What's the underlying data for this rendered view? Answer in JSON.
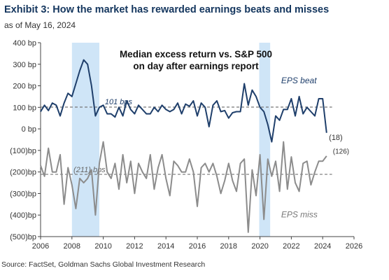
{
  "header": {
    "title": "Exhibit 3: How the market has rewarded earnings beats and misses",
    "subtitle": "as of May 16, 2024"
  },
  "footer": {
    "source": "Source: FactSet, Goldman Sachs Global Investment Research"
  },
  "colors": {
    "beat": "#1f3f6b",
    "miss": "#8c8c8c",
    "shade": "#cfe5f7",
    "dashed": "#777777"
  },
  "chart_data": {
    "type": "line",
    "title": "Median excess return vs. S&P 500\non day after earnings report",
    "ylim": [
      -500,
      400
    ],
    "xlim": [
      2006,
      2026
    ],
    "y_ticks": [
      400,
      300,
      200,
      100,
      0,
      -100,
      -200,
      -300,
      -400,
      -500
    ],
    "y_tick_labels": [
      "400 bp",
      "300 bp",
      "200 bp",
      "100 bp",
      "0 bp",
      "(100)bp",
      "(200)bp",
      "(300)bp",
      "(400)bp",
      "(500)bp"
    ],
    "x_ticks": [
      2006,
      2008,
      2010,
      2012,
      2014,
      2016,
      2018,
      2020,
      2022,
      2024,
      2026
    ],
    "x_tick_labels": [
      "2006",
      "2008",
      "2010",
      "2012",
      "2014",
      "2016",
      "2018",
      "2020",
      "2022",
      "2024",
      "2026"
    ],
    "shaded_periods": [
      [
        2008.0,
        2009.75
      ],
      [
        2019.95,
        2020.65
      ]
    ],
    "grid": false,
    "series": [
      {
        "name": "EPS beat",
        "x": [
          2006.0,
          2006.25,
          2006.5,
          2006.75,
          2007.0,
          2007.25,
          2007.5,
          2007.75,
          2008.0,
          2008.25,
          2008.5,
          2008.75,
          2009.0,
          2009.25,
          2009.5,
          2009.75,
          2010.0,
          2010.25,
          2010.5,
          2010.75,
          2011.0,
          2011.25,
          2011.5,
          2011.75,
          2012.0,
          2012.25,
          2012.5,
          2012.75,
          2013.0,
          2013.25,
          2013.5,
          2013.75,
          2014.0,
          2014.25,
          2014.5,
          2014.75,
          2015.0,
          2015.25,
          2015.5,
          2015.75,
          2016.0,
          2016.25,
          2016.5,
          2016.75,
          2017.0,
          2017.25,
          2017.5,
          2017.75,
          2018.0,
          2018.25,
          2018.5,
          2018.75,
          2019.0,
          2019.25,
          2019.5,
          2019.75,
          2020.0,
          2020.25,
          2020.5,
          2020.75,
          2021.0,
          2021.25,
          2021.5,
          2021.75,
          2022.0,
          2022.25,
          2022.5,
          2022.75,
          2023.0,
          2023.25,
          2023.5,
          2023.75,
          2024.0,
          2024.25
        ],
        "values": [
          80,
          110,
          85,
          120,
          110,
          60,
          120,
          165,
          150,
          210,
          270,
          320,
          300,
          200,
          60,
          100,
          110,
          70,
          70,
          55,
          100,
          60,
          130,
          90,
          70,
          110,
          90,
          70,
          70,
          100,
          80,
          110,
          90,
          80,
          90,
          120,
          70,
          115,
          105,
          130,
          60,
          120,
          100,
          10,
          110,
          130,
          80,
          85,
          50,
          75,
          80,
          80,
          210,
          110,
          180,
          150,
          100,
          80,
          20,
          -60,
          60,
          40,
          90,
          90,
          140,
          60,
          150,
          70,
          100,
          80,
          60,
          140,
          140,
          -18
        ]
      },
      {
        "name": "EPS miss",
        "x": [
          2006.0,
          2006.25,
          2006.5,
          2006.75,
          2007.0,
          2007.25,
          2007.5,
          2007.75,
          2008.0,
          2008.25,
          2008.5,
          2008.75,
          2009.0,
          2009.25,
          2009.5,
          2009.75,
          2010.0,
          2010.25,
          2010.5,
          2010.75,
          2011.0,
          2011.25,
          2011.5,
          2011.75,
          2012.0,
          2012.25,
          2012.5,
          2012.75,
          2013.0,
          2013.25,
          2013.5,
          2013.75,
          2014.0,
          2014.25,
          2014.5,
          2014.75,
          2015.0,
          2015.25,
          2015.5,
          2015.75,
          2016.0,
          2016.25,
          2016.5,
          2016.75,
          2017.0,
          2017.25,
          2017.5,
          2017.75,
          2018.0,
          2018.25,
          2018.5,
          2018.75,
          2019.0,
          2019.25,
          2019.5,
          2019.75,
          2020.0,
          2020.25,
          2020.5,
          2020.75,
          2021.0,
          2021.25,
          2021.5,
          2021.75,
          2022.0,
          2022.25,
          2022.5,
          2022.75,
          2023.0,
          2023.25,
          2023.5,
          2023.75,
          2024.0,
          2024.25
        ],
        "values": [
          -170,
          -220,
          -90,
          -200,
          -200,
          -120,
          -350,
          -180,
          -260,
          -370,
          -230,
          -250,
          -230,
          -190,
          -400,
          -160,
          -60,
          -200,
          -230,
          -160,
          -280,
          -120,
          -250,
          -150,
          -300,
          -160,
          -200,
          -230,
          -120,
          -280,
          -180,
          -120,
          -230,
          -310,
          -150,
          -170,
          -200,
          -200,
          -140,
          -200,
          -360,
          -180,
          -160,
          -200,
          -160,
          -220,
          -300,
          -240,
          -160,
          -240,
          -290,
          -160,
          -140,
          -480,
          -190,
          -310,
          -120,
          -420,
          -140,
          -220,
          -150,
          -290,
          -60,
          -280,
          -130,
          -250,
          -290,
          -160,
          -150,
          -260,
          -200,
          -150,
          -150,
          -126
        ]
      }
    ],
    "reference_lines": [
      {
        "value": 101,
        "label": "101 bps"
      },
      {
        "value": -211,
        "label": "(211) bps"
      }
    ],
    "data_labels": [
      {
        "series": "EPS beat",
        "text": "(18)"
      },
      {
        "series": "EPS miss",
        "text": "(126)"
      }
    ],
    "series_labels": [
      "EPS beat",
      "EPS miss"
    ]
  }
}
